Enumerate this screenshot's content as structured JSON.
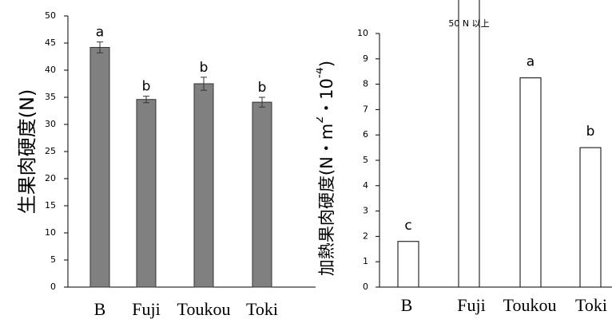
{
  "chart_data": [
    {
      "type": "bar",
      "ylabel": "生果肉硬度(N)",
      "categories": [
        "B",
        "Fuji",
        "Toukou",
        "Toki"
      ],
      "values": [
        44.2,
        34.6,
        37.5,
        34.1
      ],
      "errors": [
        1.0,
        0.6,
        1.2,
        0.9
      ],
      "letters": [
        "a",
        "b",
        "b",
        "b"
      ],
      "color": "#808080",
      "ylim": [
        0,
        50
      ],
      "yticks": [
        0,
        5,
        10,
        15,
        20,
        25,
        30,
        35,
        40,
        45,
        50
      ]
    },
    {
      "type": "bar",
      "ylabel_parts": [
        "加熱果肉硬度(N・m",
        "2",
        "・10",
        "-4",
        ")"
      ],
      "categories": [
        "B",
        "Fuji",
        "Toukou",
        "Toki"
      ],
      "values": [
        1.8,
        null,
        8.25,
        5.5
      ],
      "letters": [
        "c",
        null,
        "a",
        "b"
      ],
      "annotation": "50 N 以上",
      "color": "#ffffff",
      "ylim": [
        0,
        10
      ],
      "yticks": [
        0,
        1,
        2,
        3,
        4,
        5,
        6,
        7,
        8,
        9,
        10
      ]
    }
  ]
}
